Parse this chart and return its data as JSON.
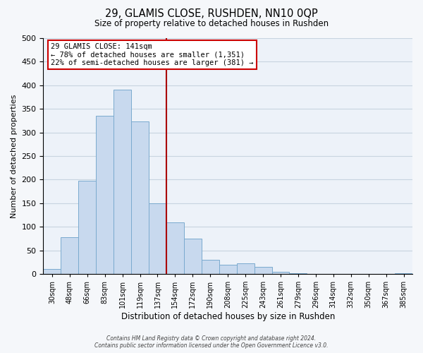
{
  "title1": "29, GLAMIS CLOSE, RUSHDEN, NN10 0QP",
  "title2": "Size of property relative to detached houses in Rushden",
  "xlabel": "Distribution of detached houses by size in Rushden",
  "ylabel": "Number of detached properties",
  "bar_labels": [
    "30sqm",
    "48sqm",
    "66sqm",
    "83sqm",
    "101sqm",
    "119sqm",
    "137sqm",
    "154sqm",
    "172sqm",
    "190sqm",
    "208sqm",
    "225sqm",
    "243sqm",
    "261sqm",
    "279sqm",
    "296sqm",
    "314sqm",
    "332sqm",
    "350sqm",
    "367sqm",
    "385sqm"
  ],
  "bar_values": [
    10,
    78,
    198,
    335,
    390,
    323,
    150,
    109,
    74,
    30,
    20,
    22,
    15,
    5,
    2,
    0,
    0,
    0,
    0,
    0,
    2
  ],
  "bar_color": "#c8d9ee",
  "bar_edge_color": "#7aaace",
  "annotation_title": "29 GLAMIS CLOSE: 141sqm",
  "annotation_line1": "← 78% of detached houses are smaller (1,351)",
  "annotation_line2": "22% of semi-detached houses are larger (381) →",
  "ylim": [
    0,
    500
  ],
  "property_line_color": "#aa0000",
  "footnote1": "Contains HM Land Registry data © Crown copyright and database right 2024.",
  "footnote2": "Contains public sector information licensed under the Open Government Licence v3.0.",
  "box_edge_color": "#cc0000",
  "grid_color": "#c8d4e0",
  "background_color": "#edf2f9",
  "fig_background": "#f5f7fa"
}
